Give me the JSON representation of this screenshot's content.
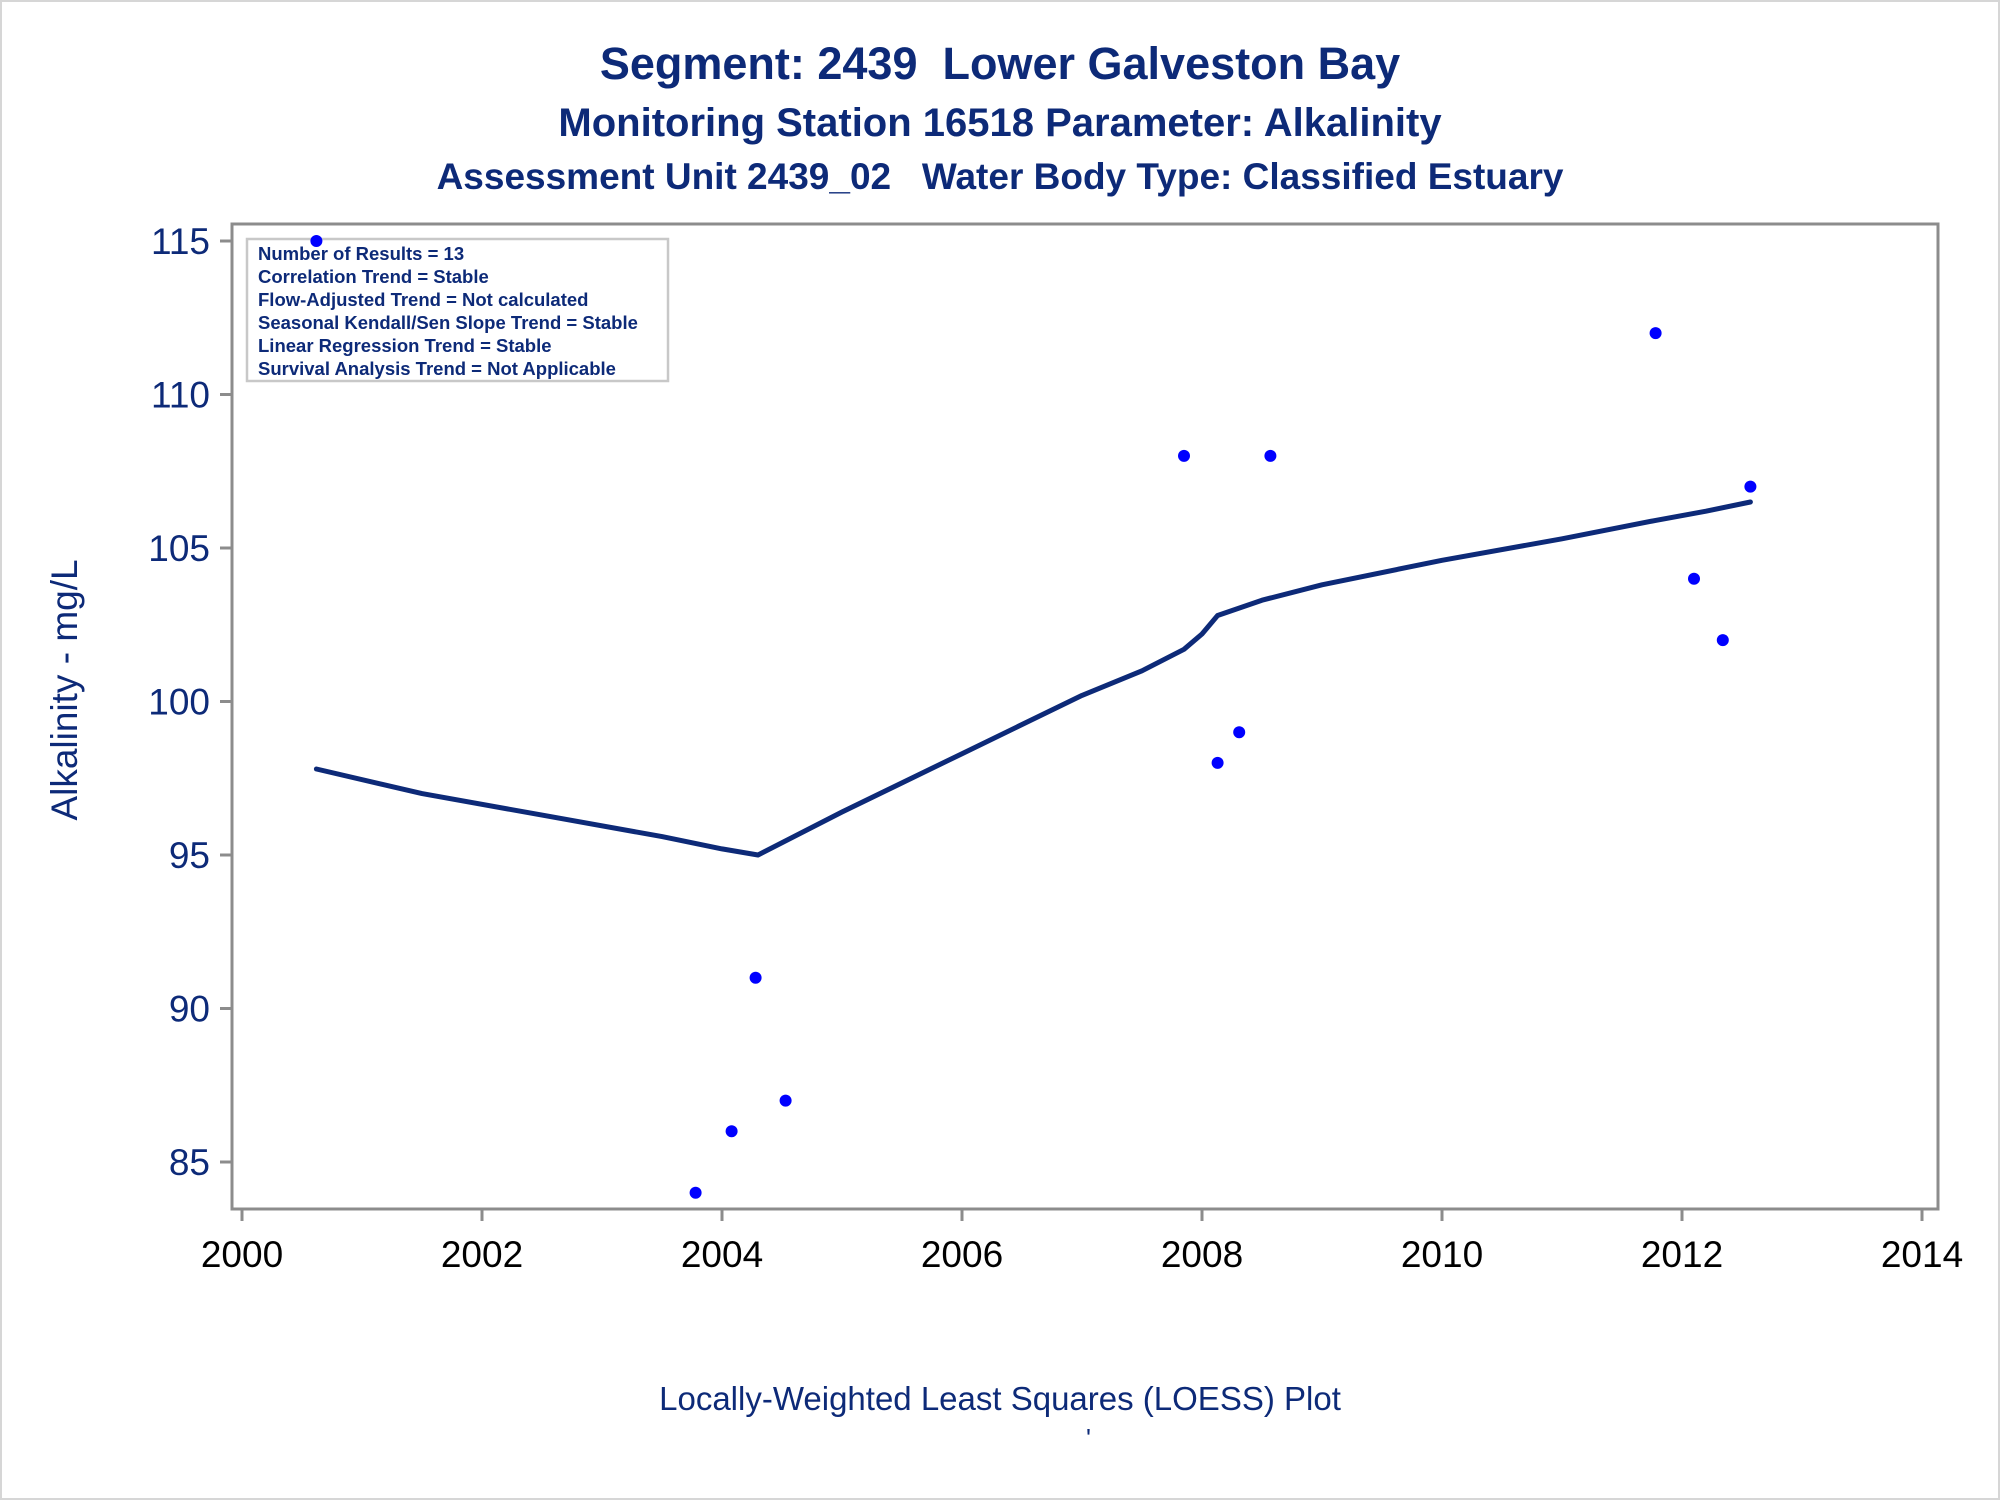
{
  "titles": {
    "line1": "Segment: 2439  Lower Galveston Bay",
    "line2": "Monitoring Station 16518 Parameter: Alkalinity",
    "line3": "Assessment Unit 2439_02   Water Body Type: Classified Estuary"
  },
  "footnote": "Locally-Weighted Least Squares (LOESS) Plot",
  "footnote_mark": "'",
  "stats_box": [
    "Number of Results = 13",
    "Correlation Trend = Stable",
    "Flow-Adjusted Trend = Not calculated",
    "Seasonal Kendall/Sen Slope Trend = Stable",
    "Linear Regression Trend = Stable",
    "Survival Analysis Trend = Not Applicable"
  ],
  "colors": {
    "text": "#0d2a78",
    "points": "#0000ff",
    "loess_line": "#0d2a78",
    "axis": "#8c8c8c"
  },
  "chart_data": {
    "type": "scatter",
    "title": "Segment: 2439  Lower Galveston Bay",
    "xlabel": "",
    "ylabel": "Alkalinity - mg/L",
    "xlim": [
      2000,
      2014
    ],
    "ylim": [
      83.8,
      115.5
    ],
    "xticks": [
      2000,
      2002,
      2004,
      2006,
      2008,
      2010,
      2012,
      2014
    ],
    "yticks": [
      85,
      90,
      95,
      100,
      105,
      110,
      115
    ],
    "grid": false,
    "legend": "none",
    "series": [
      {
        "type": "scatter",
        "x": [
          2000.62,
          2003.78,
          2004.08,
          2004.28,
          2004.53,
          2007.85,
          2008.13,
          2008.31,
          2008.57,
          2011.78,
          2012.1,
          2012.34,
          2012.57
        ],
        "y": [
          115,
          84,
          86,
          91,
          87,
          108,
          98,
          99,
          108,
          112,
          104,
          102,
          107
        ]
      },
      {
        "type": "line",
        "x": [
          2000.62,
          2001.5,
          2002.5,
          2003.5,
          2004.0,
          2004.3,
          2005.0,
          2006.0,
          2007.0,
          2007.5,
          2007.85,
          2008.0,
          2008.13,
          2008.5,
          2009.0,
          2010.0,
          2011.0,
          2011.78,
          2012.2,
          2012.57
        ],
        "y": [
          97.8,
          97.0,
          96.3,
          95.6,
          95.2,
          95.0,
          96.4,
          98.3,
          100.2,
          101.0,
          101.7,
          102.2,
          102.8,
          103.3,
          103.8,
          104.6,
          105.3,
          105.9,
          106.2,
          106.5
        ]
      }
    ]
  }
}
